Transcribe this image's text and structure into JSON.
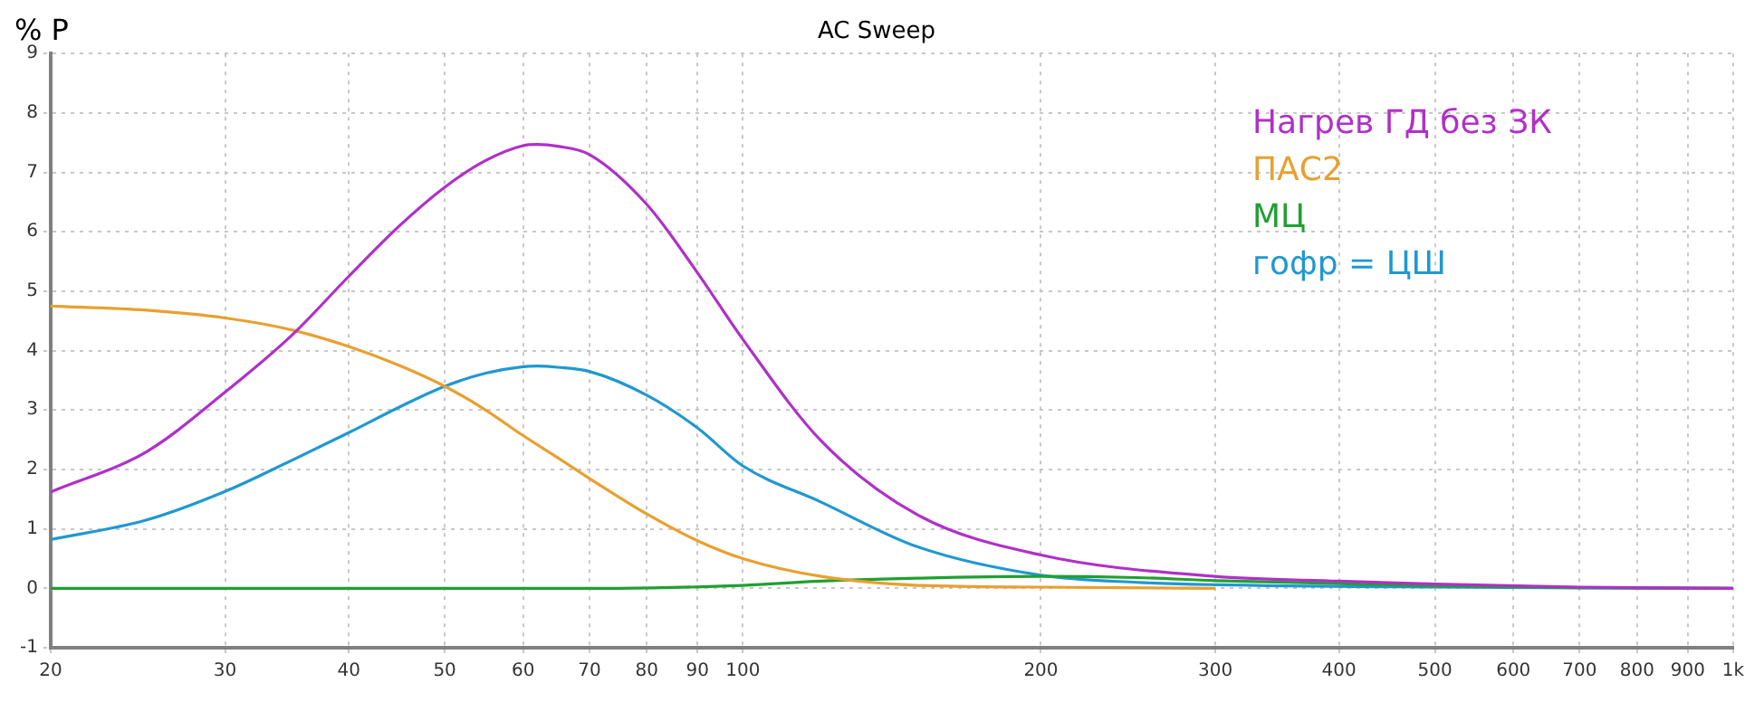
{
  "chart_data": {
    "type": "line",
    "title": "AC Sweep",
    "ylabel": "% P",
    "log": "x",
    "xlim": [
      20,
      1000
    ],
    "ylim": [
      -1,
      9
    ],
    "xticks": [
      20,
      30,
      40,
      50,
      60,
      70,
      80,
      90,
      100,
      200,
      300,
      400,
      500,
      600,
      700,
      800,
      900,
      {
        "value": 1000,
        "label": "1k"
      }
    ],
    "yticks": [
      -1,
      0,
      1,
      2,
      3,
      4,
      5,
      6,
      7,
      8,
      9
    ],
    "grid": true,
    "legend": "top right",
    "marker": "none",
    "line_style": "solid",
    "series": [
      {
        "name": "Нагрев ГД без ЗК",
        "color": "#b030c8",
        "x": [
          20,
          25,
          30,
          35,
          40,
          45,
          50,
          55,
          60,
          62,
          65,
          70,
          80,
          90,
          100,
          120,
          150,
          200,
          300,
          400,
          500,
          700,
          1000
        ],
        "values": [
          1.62,
          2.3,
          3.3,
          4.25,
          5.25,
          6.1,
          6.75,
          7.2,
          7.45,
          7.47,
          7.44,
          7.3,
          6.46,
          5.31,
          4.19,
          2.48,
          1.24,
          0.56,
          0.2,
          0.12,
          0.07,
          0.02,
          0
        ]
      },
      {
        "name": "ПАС2",
        "color": "#e8a030",
        "x": [
          20,
          25,
          30,
          35,
          40,
          45,
          50,
          55,
          60,
          65,
          70,
          80,
          90,
          100,
          120,
          150,
          200,
          300
        ],
        "values": [
          4.75,
          4.68,
          4.55,
          4.35,
          4.07,
          3.75,
          3.4,
          3.0,
          2.57,
          2.2,
          1.85,
          1.25,
          0.8,
          0.5,
          0.2,
          0.05,
          0.02,
          0
        ]
      },
      {
        "name": "МЦ",
        "color": "#20a030",
        "x": [
          20,
          75,
          100,
          120,
          150,
          200,
          250,
          300,
          400,
          500,
          700,
          1000
        ],
        "values": [
          0,
          0,
          0.05,
          0.12,
          0.17,
          0.2,
          0.18,
          0.13,
          0.08,
          0.04,
          0.01,
          0
        ]
      },
      {
        "name": "гофр = ЦШ",
        "color": "#2098d0",
        "x": [
          20,
          25,
          30,
          35,
          40,
          45,
          50,
          55,
          60,
          62,
          65,
          70,
          80,
          90,
          100,
          120,
          150,
          200,
          250,
          300,
          500,
          1000
        ],
        "values": [
          0.82,
          1.15,
          1.63,
          2.15,
          2.62,
          3.05,
          3.4,
          3.62,
          3.73,
          3.74,
          3.72,
          3.65,
          3.25,
          2.7,
          2.06,
          1.45,
          0.7,
          0.22,
          0.1,
          0.06,
          0.02,
          0
        ]
      }
    ]
  }
}
